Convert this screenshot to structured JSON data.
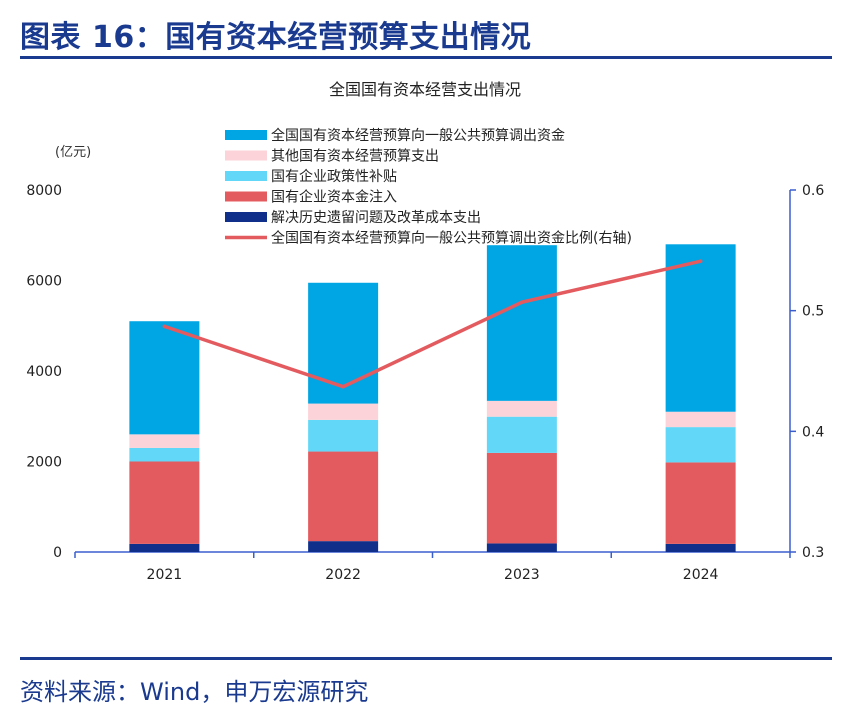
{
  "figure": {
    "title": "图表 16：国有资本经营预算支出情况",
    "source": "资料来源：Wind，申万宏源研究"
  },
  "colors": {
    "brand": "#1a3a8f",
    "axis": "#3a5fcd",
    "s_transfer": "#00a5e3",
    "s_other": "#fbd3d8",
    "s_subsidy": "#63d7f7",
    "s_capital": "#e45b5f",
    "s_reform": "#0f2f8a",
    "ratio_line": "#e45b5f"
  },
  "chart_data": {
    "type": "bar",
    "stacked": true,
    "title": "全国国有资本经营支出情况",
    "ylabel": "(亿元)",
    "categories": [
      "2021",
      "2022",
      "2023",
      "2024"
    ],
    "ylim": [
      0,
      8000
    ],
    "yticks": [
      0,
      2000,
      4000,
      6000,
      8000
    ],
    "y2lim": [
      0.3,
      0.6
    ],
    "y2ticks": [
      0.3,
      0.4,
      0.5,
      0.6
    ],
    "legend_position": "top",
    "series": [
      {
        "name": "解决历史遗留问题及改革成本支出",
        "key": "s_reform",
        "values": [
          180,
          240,
          190,
          180
        ]
      },
      {
        "name": "国有企业资本金注入",
        "key": "s_capital",
        "values": [
          1820,
          1980,
          2000,
          1800
        ]
      },
      {
        "name": "国有企业政策性补贴",
        "key": "s_subsidy",
        "values": [
          300,
          700,
          800,
          780
        ]
      },
      {
        "name": "其他国有资本经营预算支出",
        "key": "s_other",
        "values": [
          300,
          360,
          350,
          340
        ]
      },
      {
        "name": "全国国有资本经营预算向一般公共预算调出资金",
        "key": "s_transfer",
        "values": [
          2500,
          2670,
          3440,
          3700
        ]
      }
    ],
    "legend_order": [
      "s_transfer",
      "s_other",
      "s_subsidy",
      "s_capital",
      "s_reform",
      "ratio"
    ],
    "line": {
      "name": "全国国有资本经营预算向一般公共预算调出资金比例(右轴)",
      "key": "ratio",
      "axis": "right",
      "values": [
        0.487,
        0.437,
        0.507,
        0.541
      ]
    }
  }
}
